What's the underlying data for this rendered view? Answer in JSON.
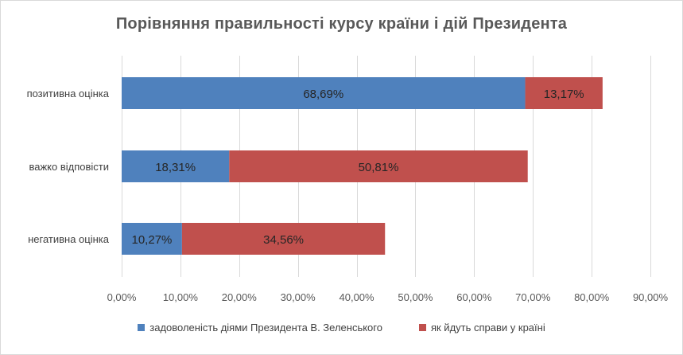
{
  "chart_data": {
    "type": "bar",
    "orientation": "horizontal",
    "stacked": true,
    "title": "Порівняння правильності курсу країни і дій Президента",
    "categories": [
      "позитивна оцінка",
      "важко відповісти",
      "негативна оцінка"
    ],
    "series": [
      {
        "name": "задоволеність діями  Президента В. Зеленського",
        "color": "#4f81bd",
        "values": [
          68.69,
          18.31,
          10.27
        ],
        "labels": [
          "68,69%",
          "18,31%",
          "10,27%"
        ]
      },
      {
        "name": "як йдуть справи у країні",
        "color": "#c0504d",
        "values": [
          13.17,
          50.81,
          34.56
        ],
        "labels": [
          "13,17%",
          "50,81%",
          "34,56%"
        ]
      }
    ],
    "xlim": [
      0,
      90
    ],
    "xticks": [
      0,
      10,
      20,
      30,
      40,
      50,
      60,
      70,
      80,
      90
    ],
    "xtick_labels": [
      "0,00%",
      "10,00%",
      "20,00%",
      "30,00%",
      "40,00%",
      "50,00%",
      "60,00%",
      "70,00%",
      "80,00%",
      "90,00%"
    ],
    "grid": true,
    "legend_position": "bottom"
  }
}
